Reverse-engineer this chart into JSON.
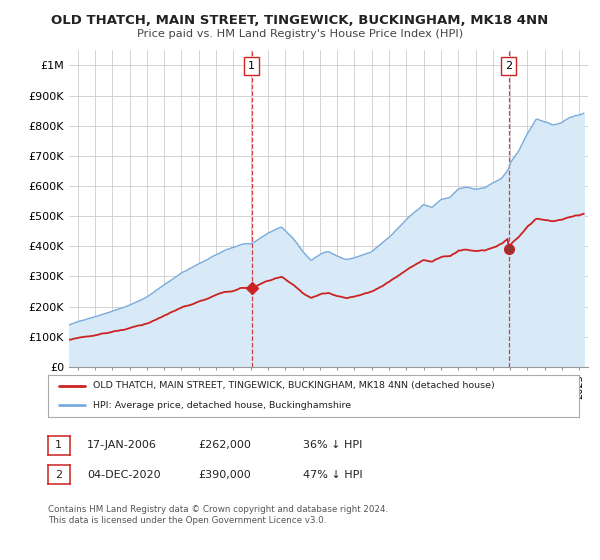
{
  "title": "OLD THATCH, MAIN STREET, TINGEWICK, BUCKINGHAM, MK18 4NN",
  "subtitle": "Price paid vs. HM Land Registry's House Price Index (HPI)",
  "ylabel_ticks": [
    "£0",
    "£100K",
    "£200K",
    "£300K",
    "£400K",
    "£500K",
    "£600K",
    "£700K",
    "£800K",
    "£900K",
    "£1M"
  ],
  "ytick_vals": [
    0,
    100000,
    200000,
    300000,
    400000,
    500000,
    600000,
    700000,
    800000,
    900000,
    1000000
  ],
  "ylim": [
    0,
    1050000
  ],
  "xlim_start": 1995.5,
  "xlim_end": 2025.5,
  "hpi_color": "#7aabdc",
  "hpi_fill_color": "#d8eaf7",
  "price_color": "#cc2222",
  "dashed_line_color": "#cc2222",
  "background_color": "#ffffff",
  "grid_color": "#cccccc",
  "transaction1_x": 2006.05,
  "transaction1_y": 262000,
  "transaction2_x": 2020.92,
  "transaction2_y": 390000,
  "legend_entry1": "OLD THATCH, MAIN STREET, TINGEWICK, BUCKINGHAM, MK18 4NN (detached house)",
  "legend_entry2": "HPI: Average price, detached house, Buckinghamshire",
  "annot1_label": "1",
  "annot1_date": "17-JAN-2006",
  "annot1_price": "£262,000",
  "annot1_hpi": "36% ↓ HPI",
  "annot2_label": "2",
  "annot2_date": "04-DEC-2020",
  "annot2_price": "£390,000",
  "annot2_hpi": "47% ↓ HPI",
  "footer": "Contains HM Land Registry data © Crown copyright and database right 2024.\nThis data is licensed under the Open Government Licence v3.0."
}
